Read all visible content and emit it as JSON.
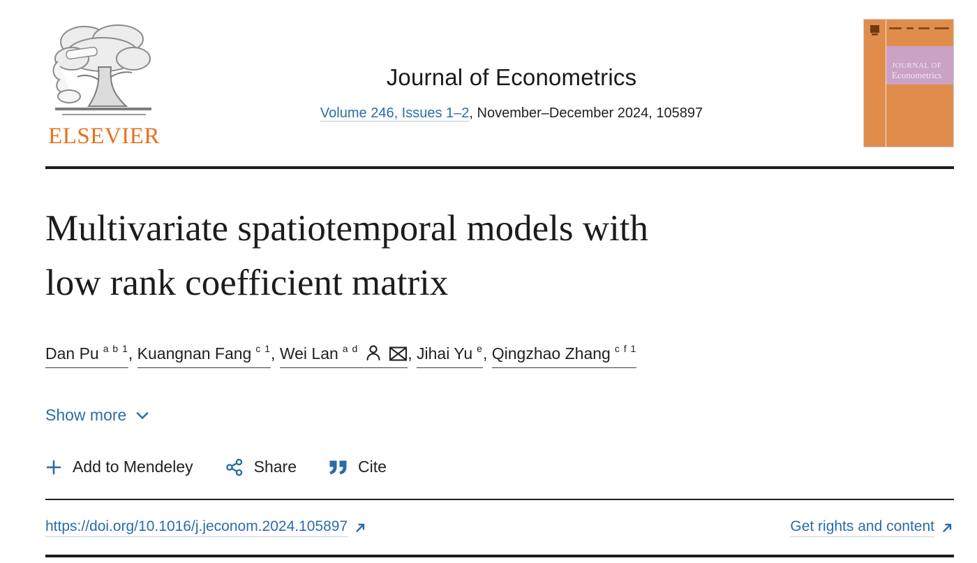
{
  "publisher": {
    "wordmark": "ELSEVIER"
  },
  "journal": {
    "title": "Journal of Econometrics",
    "volume_link": "Volume 246, Issues 1–2",
    "issue_suffix": ", November–December 2024, 105897",
    "cover": {
      "masthead_line1": "JOURNAL OF",
      "masthead_line2": "Econometrics"
    }
  },
  "article": {
    "title": "Multivariate spatiotemporal models with\nlow rank coefficient matrix"
  },
  "authors": {
    "separator": ", ",
    "list": [
      {
        "name": "Dan Pu",
        "sup": "a b 1",
        "has_icons": false
      },
      {
        "name": "Kuangnan Fang",
        "sup": "c 1",
        "has_icons": false
      },
      {
        "name": "Wei Lan",
        "sup": "a d",
        "has_icons": true
      },
      {
        "name": "Jihai Yu",
        "sup": "e",
        "has_icons": false
      },
      {
        "name": "Qingzhao Zhang",
        "sup": "c f 1",
        "has_icons": false
      }
    ]
  },
  "actions": {
    "show_more": "Show more",
    "add_to_mendeley": "Add to Mendeley",
    "share": "Share",
    "cite": "Cite"
  },
  "footer_links": {
    "doi": "https://doi.org/10.1016/j.jeconom.2024.105897",
    "rights": "Get rights and content"
  },
  "colors": {
    "link_blue": "#2b6ca9",
    "text_dark": "#1f1f1f",
    "elsevier_orange": "#e8701a",
    "cover_orange": "#e08d4c",
    "cover_band_pink": "#c9a2c6",
    "rule_dark": "#1d1d1d"
  }
}
